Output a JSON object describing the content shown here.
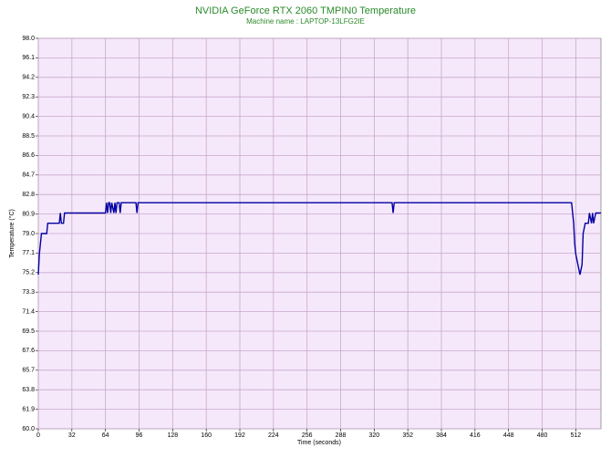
{
  "chart_data": {
    "type": "line",
    "title": "NVIDIA GeForce RTX 2060 TMPIN0 Temperature",
    "subtitle": "Machine name : LAPTOP-13LFG2IE",
    "x_label": "Time (seconds)",
    "y_label": "Temperature (°C)",
    "x": [
      0,
      1,
      2,
      3,
      8,
      9,
      20,
      21,
      22,
      24,
      25,
      64,
      65,
      66,
      67,
      68,
      69,
      70,
      72,
      73,
      74,
      75,
      77,
      78,
      79,
      93,
      94,
      95,
      337,
      338,
      339,
      508,
      509,
      510,
      511,
      512,
      514,
      516,
      518,
      519,
      521,
      524,
      525,
      527,
      528,
      529,
      531,
      534,
      536
    ],
    "series": [
      {
        "color": "#0000a0",
        "values": [
          75,
          77,
          78,
          79,
          79,
          80,
          80,
          81,
          80,
          80,
          81,
          81,
          82,
          81,
          82,
          82,
          81,
          82,
          81,
          82,
          81,
          82,
          82,
          81,
          82,
          82,
          81,
          82,
          82,
          81,
          82,
          82,
          81,
          80,
          78,
          77,
          76,
          75,
          76,
          79,
          80,
          80,
          81,
          80,
          81,
          80,
          81,
          81,
          81
        ]
      }
    ],
    "xlim": [
      0,
      536
    ],
    "xticks": [
      0,
      32,
      64,
      96,
      128,
      160,
      192,
      224,
      256,
      288,
      320,
      352,
      384,
      416,
      448,
      480,
      512
    ],
    "ylim": [
      60,
      98
    ],
    "yticks": [
      {
        "value": 60,
        "label": "60.0"
      },
      61.9,
      63.8,
      65.7,
      67.6,
      69.5,
      71.4,
      73.3,
      75.2,
      77.1,
      {
        "value": 79,
        "label": "79.0"
      },
      80.9,
      82.8,
      84.7,
      86.6,
      88.5,
      90.4,
      92.3,
      94.2,
      96.1,
      {
        "value": 98,
        "label": "98.0"
      }
    ],
    "grid": true
  }
}
